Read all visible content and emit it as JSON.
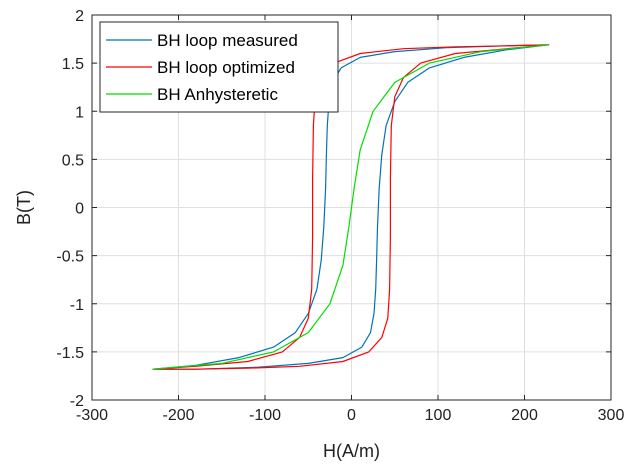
{
  "chart_data": {
    "type": "line",
    "title": "",
    "xlabel": "H(A/m)",
    "ylabel": "B(T)",
    "xlim": [
      -300,
      300
    ],
    "ylim": [
      -2,
      2
    ],
    "x_ticks": [
      -300,
      -200,
      -100,
      0,
      100,
      200,
      300
    ],
    "y_ticks": [
      -2,
      -1.5,
      -1,
      -0.5,
      0,
      0.5,
      1,
      1.5,
      2
    ],
    "x_tick_labels": [
      "-300",
      "-200",
      "-100",
      "0",
      "100",
      "200",
      "300"
    ],
    "y_tick_labels": [
      "-2",
      "-1.5",
      "-1",
      "-0.5",
      "0",
      "0.5",
      "1",
      "1.5",
      "2"
    ],
    "grid": true,
    "legend_position": "top-left",
    "series": [
      {
        "name": "BH loop measured",
        "color": "#0072BD",
        "x": [
          -230,
          -180,
          -130,
          -90,
          -65,
          -50,
          -40,
          -35,
          -32,
          -30,
          -29,
          -28,
          -26,
          -22,
          -12,
          10,
          50,
          110,
          180,
          228,
          180,
          130,
          90,
          65,
          50,
          40,
          35,
          32,
          30,
          29,
          28,
          26,
          22,
          12,
          -10,
          -50,
          -110,
          -180,
          -230
        ],
        "y": [
          -1.68,
          -1.64,
          -1.56,
          -1.45,
          -1.3,
          -1.1,
          -0.85,
          -0.55,
          -0.2,
          0.2,
          0.55,
          0.85,
          1.1,
          1.3,
          1.45,
          1.56,
          1.62,
          1.66,
          1.68,
          1.69,
          1.64,
          1.56,
          1.45,
          1.3,
          1.1,
          0.85,
          0.55,
          0.2,
          -0.2,
          -0.55,
          -0.85,
          -1.1,
          -1.3,
          -1.45,
          -1.56,
          -1.62,
          -1.66,
          -1.68,
          -1.68
        ]
      },
      {
        "name": "BH loop optimized",
        "color": "#FF0000",
        "x": [
          -230,
          -180,
          -120,
          -80,
          -60,
          -50,
          -46,
          -45,
          -45,
          -44,
          -42,
          -35,
          -20,
          10,
          60,
          120,
          180,
          228,
          180,
          120,
          80,
          60,
          50,
          46,
          45,
          45,
          44,
          42,
          35,
          20,
          -10,
          -60,
          -120,
          -180,
          -230
        ],
        "y": [
          -1.68,
          -1.65,
          -1.6,
          -1.5,
          -1.35,
          -1.15,
          -0.85,
          -0.3,
          0.3,
          0.85,
          1.15,
          1.35,
          1.5,
          1.6,
          1.65,
          1.67,
          1.68,
          1.69,
          1.65,
          1.6,
          1.5,
          1.35,
          1.15,
          0.85,
          0.3,
          -0.3,
          -0.85,
          -1.15,
          -1.35,
          -1.5,
          -1.6,
          -1.65,
          -1.67,
          -1.68,
          -1.68
        ]
      },
      {
        "name": "BH Anhysteretic",
        "color": "#00DD00",
        "x": [
          -230,
          -150,
          -90,
          -50,
          -25,
          -10,
          -3,
          0,
          3,
          10,
          25,
          50,
          90,
          150,
          228
        ],
        "y": [
          -1.68,
          -1.62,
          -1.5,
          -1.3,
          -1.0,
          -0.6,
          -0.2,
          0,
          0.2,
          0.6,
          1.0,
          1.3,
          1.5,
          1.62,
          1.69
        ]
      }
    ]
  }
}
